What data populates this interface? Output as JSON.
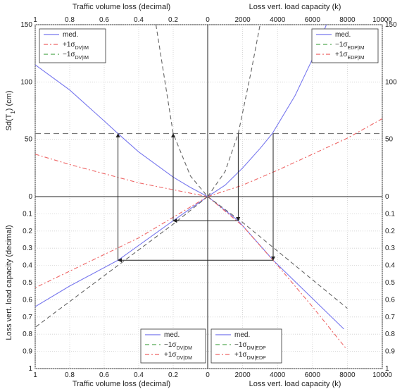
{
  "chart_data": {
    "type": "line",
    "panels": [
      {
        "quadrant": "top-left",
        "xlabel": "Traffic volume loss (decimal)",
        "ylabel": "Sd(T",
        "ylabel_sub": "1",
        "ylabel_tail": ") (cm)",
        "xlim": [
          1,
          0
        ],
        "ylim": [
          0,
          150
        ],
        "xticks": [
          "1",
          "0.8",
          "0.6",
          "0.4",
          "0.2",
          "0"
        ],
        "yticks": [
          "0",
          "50",
          "100",
          "150"
        ],
        "legend": {
          "position": "top-left",
          "entries": [
            {
              "text": "med.",
              "sub": "",
              "color": "#7777ee",
              "dash": ""
            },
            {
              "text": "+1σ",
              "sub": "DV|IM",
              "color": "#ee6666",
              "dash": "6,3,2,3"
            },
            {
              "text": "−1σ",
              "sub": "DV|IM",
              "color": "#55aa55",
              "dash": "6,4"
            }
          ]
        },
        "series": [
          {
            "role": "med",
            "color": "#7777ee",
            "dash": "",
            "x": [
              1,
              0.8,
              0.6,
              0.52,
              0.4,
              0.3,
              0.2,
              0.1,
              0
            ],
            "y": [
              115,
              93,
              66,
              55,
              39,
              28,
              17,
              8,
              0
            ]
          },
          {
            "role": "plus",
            "color": "#ee6666",
            "dash": "6,3,2,3",
            "x": [
              1,
              0.8,
              0.6,
              0.4,
              0.2,
              0
            ],
            "y": [
              37,
              28,
              20,
              12,
              6,
              0
            ]
          },
          {
            "role": "minus",
            "color": "#666666",
            "dash": "6,4",
            "x": [
              0.3,
              0.2,
              0.1,
              0
            ],
            "y": [
              150,
              55,
              18,
              0
            ]
          }
        ]
      },
      {
        "quadrant": "top-right",
        "xlabel": "Loss vert. load capacity (k)",
        "ylabel": "Sd(T",
        "ylabel_sub": "1",
        "ylabel_tail": ") (cm)",
        "xlim": [
          0,
          10000
        ],
        "ylim": [
          0,
          150
        ],
        "xticks": [
          "0",
          "2000",
          "4000",
          "6000",
          "8000",
          "10000"
        ],
        "yticks": [
          "0",
          "50",
          "100",
          "150"
        ],
        "legend": {
          "position": "top-right",
          "entries": [
            {
              "text": "med.",
              "sub": "",
              "color": "#7777ee",
              "dash": ""
            },
            {
              "text": "−1σ",
              "sub": "EDP|IM",
              "color": "#55aa55",
              "dash": "6,4"
            },
            {
              "text": "+1σ",
              "sub": "EDP|IM",
              "color": "#ee6666",
              "dash": "6,3,2,3"
            }
          ]
        },
        "series": [
          {
            "role": "med",
            "color": "#7777ee",
            "dash": "",
            "x": [
              0,
              1000,
              2000,
              3000,
              3700,
              5000,
              6000,
              6800
            ],
            "y": [
              0,
              10,
              25,
              42,
              55,
              88,
              120,
              150
            ]
          },
          {
            "role": "plus",
            "color": "#ee6666",
            "dash": "6,3,2,3",
            "x": [
              0,
              2000,
              4000,
              6000,
              8000,
              10000
            ],
            "y": [
              0,
              10,
              23,
              37,
              51,
              68
            ]
          },
          {
            "role": "minus",
            "color": "#666666",
            "dash": "6,4",
            "x": [
              0,
              1000,
              1750,
              2500,
              3000
            ],
            "y": [
              0,
              22,
              55,
              110,
              150
            ]
          }
        ]
      },
      {
        "quadrant": "bottom-left",
        "xlabel": "Traffic volume loss (decimal)",
        "ylabel": "Loss vert. load capacity (decimal)",
        "xlim": [
          1,
          0
        ],
        "ylim": [
          0,
          1
        ],
        "xticks": [
          "1",
          "0.8",
          "0.6",
          "0.4",
          "0.2",
          "0"
        ],
        "yticks": [
          "0",
          "0.1",
          "0.2",
          "0.3",
          "0.4",
          "0.5",
          "0.6",
          "0.7",
          "0.8",
          "0.9",
          "1"
        ],
        "legend": {
          "position": "bottom-center",
          "entries": [
            {
              "text": "med.",
              "sub": "",
              "color": "#7777ee",
              "dash": ""
            },
            {
              "text": "−1σ",
              "sub": "DV|DM",
              "color": "#55aa55",
              "dash": "6,4"
            },
            {
              "text": "+1σ",
              "sub": "DV|DM",
              "color": "#ee6666",
              "dash": "6,3,2,3"
            }
          ]
        },
        "series": [
          {
            "role": "med",
            "color": "#7777ee",
            "dash": "",
            "x": [
              0,
              0.2,
              0.52,
              0.8,
              1
            ],
            "y": [
              0,
              0.14,
              0.37,
              0.52,
              0.64
            ]
          },
          {
            "role": "plus",
            "color": "#ee6666",
            "dash": "6,3,2,3",
            "x": [
              0,
              0.4,
              1
            ],
            "y": [
              0,
              0.24,
              0.53
            ]
          },
          {
            "role": "minus",
            "color": "#666666",
            "dash": "6,4",
            "x": [
              0,
              0.2,
              0.52,
              1
            ],
            "y": [
              0,
              0.16,
              0.4,
              0.76
            ]
          }
        ]
      },
      {
        "quadrant": "bottom-right",
        "xlabel": "Loss vert. load capacity (k)",
        "ylabel": "Loss vert. load capacity (decimal)",
        "xlim": [
          0,
          10000
        ],
        "ylim": [
          0,
          1
        ],
        "xticks": [
          "0",
          "2000",
          "4000",
          "6000",
          "8000",
          "10000"
        ],
        "yticks": [
          "0",
          "0.1",
          "0.2",
          "0.3",
          "0.4",
          "0.5",
          "0.6",
          "0.7",
          "0.8",
          "0.9",
          "1"
        ],
        "legend": {
          "position": "bottom-center",
          "entries": [
            {
              "text": "med.",
              "sub": "",
              "color": "#7777ee",
              "dash": ""
            },
            {
              "text": "−1σ",
              "sub": "DM|EDP",
              "color": "#55aa55",
              "dash": "6,4"
            },
            {
              "text": "+1σ",
              "sub": "DM|EDP",
              "color": "#ee6666",
              "dash": "6,3,2,3"
            }
          ]
        },
        "series": [
          {
            "role": "med",
            "color": "#7777ee",
            "dash": "",
            "x": [
              0,
              1750,
              3750,
              7800
            ],
            "y": [
              0,
              0.14,
              0.37,
              0.77
            ]
          },
          {
            "role": "plus",
            "color": "#ee6666",
            "dash": "6,3,2,3",
            "x": [
              0,
              2000,
              4000,
              6000,
              7900
            ],
            "y": [
              0,
              0.17,
              0.4,
              0.64,
              0.88
            ]
          },
          {
            "role": "minus",
            "color": "#666666",
            "dash": "6,4",
            "x": [
              0,
              2000,
              5000,
              8000
            ],
            "y": [
              0,
              0.15,
              0.4,
              0.65
            ]
          }
        ]
      }
    ],
    "threshold_sd": 55,
    "arrows": [
      {
        "from": [
          "TR",
          3750,
          55
        ],
        "to": [
          "BR",
          3750,
          0.37
        ]
      },
      {
        "from": [
          "BR",
          3750,
          0.37
        ],
        "to": [
          "BL",
          0.52,
          0.37
        ]
      },
      {
        "from": [
          "BL",
          0.52,
          0.37
        ],
        "to": [
          "TL",
          0.52,
          55
        ]
      },
      {
        "from": [
          "TR",
          1750,
          55
        ],
        "to": [
          "BR",
          1750,
          0.14
        ]
      },
      {
        "from": [
          "BR",
          1750,
          0.14
        ],
        "to": [
          "BL",
          0.2,
          0.14
        ]
      },
      {
        "from": [
          "BL",
          0.2,
          0.14
        ],
        "to": [
          "TL",
          0.2,
          55
        ]
      }
    ]
  }
}
